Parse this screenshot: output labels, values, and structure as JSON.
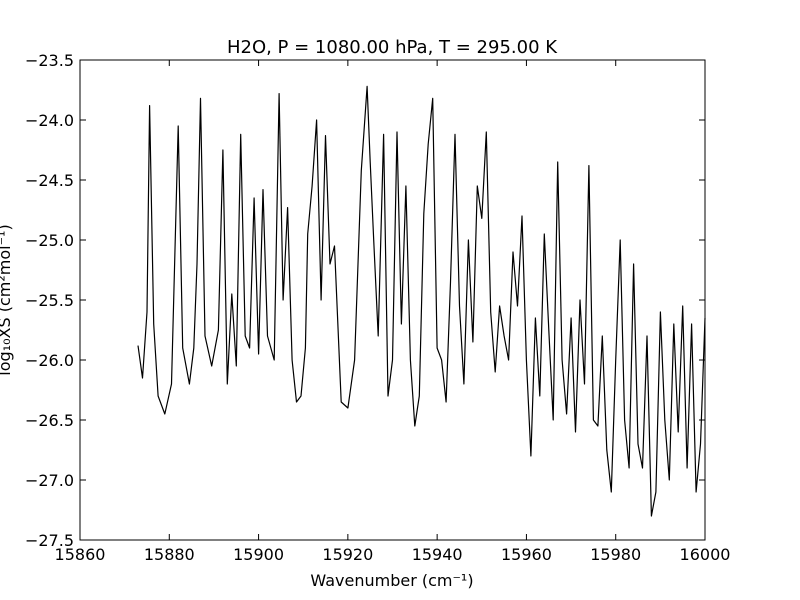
{
  "chart_data": {
    "type": "line",
    "title": "H2O, P = 1080.00 hPa, T = 295.00 K",
    "xlabel": "Wavenumber (cm⁻¹)",
    "ylabel": "log₁₀XS (cm²mol⁻¹)",
    "xlim": [
      15860,
      16000
    ],
    "ylim": [
      -27.5,
      -23.5
    ],
    "xticks": [
      15860,
      15880,
      15900,
      15920,
      15940,
      15960,
      15980,
      16000
    ],
    "xtick_labels": [
      "15860",
      "15880",
      "15900",
      "15920",
      "15940",
      "15960",
      "15980",
      "16000"
    ],
    "yticks": [
      -23.5,
      -24.0,
      -24.5,
      -25.0,
      -25.5,
      -26.0,
      -26.5,
      -27.0,
      -27.5
    ],
    "ytick_labels": [
      "−23.5",
      "−24.0",
      "−24.5",
      "−25.0",
      "−25.5",
      "−26.0",
      "−26.5",
      "−27.0",
      "−27.5"
    ],
    "grid": false,
    "line_color": "#000000",
    "series": [
      {
        "x": [
          15873.0,
          15874.0,
          15875.0,
          15875.6,
          15876.5,
          15877.5,
          15879.0,
          15880.5,
          15882.0,
          15883.0,
          15884.5,
          15885.5,
          15886.2,
          15887.0,
          15888.0,
          15889.5,
          15891.0,
          15892.0,
          15893.0,
          15894.0,
          15895.0,
          15896.0,
          15897.0,
          15898.0,
          15899.0,
          15900.0,
          15901.0,
          15902.0,
          15903.5,
          15904.6,
          15905.5,
          15906.5,
          15907.5,
          15908.5,
          15909.5,
          15910.5,
          15911.0,
          15912.0,
          15913.0,
          15914.0,
          15915.0,
          15916.0,
          15917.0,
          15918.5,
          15920.0,
          15921.5,
          15923.0,
          15924.3,
          15925.0,
          15925.8,
          15926.8,
          15928.0,
          15929.0,
          15930.0,
          15931.0,
          15932.0,
          15933.0,
          15934.0,
          15935.0,
          15936.0,
          15937.0,
          15938.0,
          15939.0,
          15940.0,
          15941.0,
          15942.0,
          15943.0,
          15944.0,
          15945.0,
          15946.0,
          15947.0,
          15948.0,
          15949.0,
          15950.0,
          15951.0,
          15952.0,
          15953.0,
          15954.0,
          15955.0,
          15956.0,
          15957.0,
          15958.0,
          15959.0,
          15960.0,
          15961.0,
          15962.0,
          15963.0,
          15964.0,
          15965.0,
          15966.0,
          15967.0,
          15968.0,
          15969.0,
          15970.0,
          15971.0,
          15972.0,
          15973.0,
          15974.0,
          15975.0,
          15976.0,
          15977.0,
          15978.0,
          15979.0,
          15980.0,
          15981.0,
          15982.0,
          15983.0,
          15984.0,
          15985.0,
          15986.0,
          15987.0,
          15988.0,
          15989.0,
          15990.0,
          15991.0,
          15992.0,
          15993.0,
          15994.0,
          15995.0,
          15996.0,
          15997.0,
          15998.0,
          15999.0,
          16000.0
        ],
        "y": [
          -25.88,
          -26.15,
          -25.6,
          -23.88,
          -25.7,
          -26.3,
          -26.45,
          -26.2,
          -24.05,
          -25.9,
          -26.2,
          -25.9,
          -25.2,
          -23.82,
          -25.8,
          -26.05,
          -25.75,
          -24.25,
          -26.2,
          -25.45,
          -26.05,
          -24.12,
          -25.8,
          -25.9,
          -24.65,
          -25.95,
          -24.58,
          -25.8,
          -26.0,
          -23.78,
          -25.5,
          -24.73,
          -26.0,
          -26.35,
          -26.3,
          -25.9,
          -24.95,
          -24.55,
          -24.0,
          -25.5,
          -24.13,
          -25.2,
          -25.05,
          -26.35,
          -26.4,
          -26.0,
          -24.42,
          -23.72,
          -24.35,
          -25.0,
          -25.8,
          -24.12,
          -26.3,
          -26.0,
          -24.1,
          -25.7,
          -24.55,
          -26.0,
          -26.55,
          -26.3,
          -24.78,
          -24.2,
          -23.82,
          -25.9,
          -26.0,
          -26.35,
          -25.35,
          -24.12,
          -25.55,
          -26.2,
          -25.0,
          -25.85,
          -24.55,
          -24.82,
          -24.1,
          -25.6,
          -26.1,
          -25.55,
          -25.8,
          -26.0,
          -25.1,
          -25.55,
          -24.8,
          -26.0,
          -26.8,
          -25.65,
          -26.3,
          -24.95,
          -25.75,
          -26.5,
          -24.35,
          -26.0,
          -26.45,
          -25.65,
          -26.6,
          -25.5,
          -26.2,
          -24.38,
          -26.5,
          -26.55,
          -25.8,
          -26.75,
          -27.1,
          -26.0,
          -25.0,
          -26.5,
          -26.9,
          -25.2,
          -26.7,
          -26.9,
          -25.8,
          -27.3,
          -27.1,
          -25.6,
          -26.5,
          -27.0,
          -25.7,
          -26.6,
          -25.55,
          -26.9,
          -25.7,
          -27.1,
          -26.7,
          -25.65
        ]
      }
    ]
  }
}
